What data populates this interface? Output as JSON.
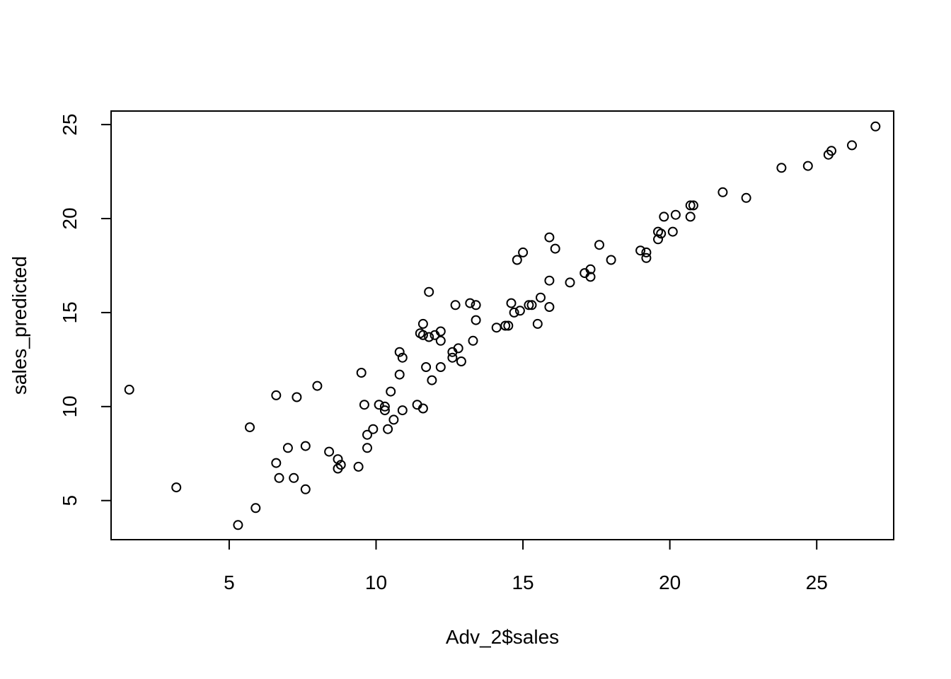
{
  "chart_data": {
    "type": "scatter",
    "title": "",
    "xlabel": "Adv_2$sales",
    "ylabel": "sales_predicted",
    "xlim": [
      0.98,
      27.62
    ],
    "ylim": [
      2.92,
      25.72
    ],
    "xticks": [
      5,
      10,
      15,
      20,
      25
    ],
    "yticks": [
      5,
      10,
      15,
      20,
      25
    ],
    "grid": false,
    "marker": "open-circle",
    "color": "#000000",
    "points": [
      [
        1.6,
        10.9
      ],
      [
        3.2,
        5.7
      ],
      [
        5.3,
        3.7
      ],
      [
        5.7,
        8.9
      ],
      [
        5.9,
        4.6
      ],
      [
        6.6,
        10.6
      ],
      [
        6.6,
        7.0
      ],
      [
        6.7,
        6.2
      ],
      [
        7.0,
        7.8
      ],
      [
        7.2,
        6.2
      ],
      [
        7.3,
        10.5
      ],
      [
        7.6,
        7.9
      ],
      [
        7.6,
        5.6
      ],
      [
        8.0,
        11.1
      ],
      [
        8.4,
        7.6
      ],
      [
        8.7,
        7.2
      ],
      [
        8.7,
        6.7
      ],
      [
        8.8,
        6.9
      ],
      [
        9.4,
        6.8
      ],
      [
        9.5,
        11.8
      ],
      [
        9.6,
        10.1
      ],
      [
        9.7,
        8.5
      ],
      [
        9.7,
        7.8
      ],
      [
        9.9,
        8.8
      ],
      [
        10.1,
        10.1
      ],
      [
        10.3,
        10.0
      ],
      [
        10.3,
        9.8
      ],
      [
        10.4,
        8.8
      ],
      [
        10.5,
        10.8
      ],
      [
        10.6,
        9.3
      ],
      [
        10.8,
        12.9
      ],
      [
        10.8,
        11.7
      ],
      [
        10.9,
        12.6
      ],
      [
        10.9,
        9.8
      ],
      [
        11.4,
        10.1
      ],
      [
        11.5,
        13.9
      ],
      [
        11.6,
        14.4
      ],
      [
        11.6,
        13.8
      ],
      [
        11.6,
        9.9
      ],
      [
        11.7,
        12.1
      ],
      [
        11.8,
        16.1
      ],
      [
        11.8,
        13.7
      ],
      [
        11.9,
        11.4
      ],
      [
        12.0,
        13.8
      ],
      [
        12.2,
        14.0
      ],
      [
        12.2,
        13.5
      ],
      [
        12.2,
        12.1
      ],
      [
        12.6,
        12.9
      ],
      [
        12.6,
        12.6
      ],
      [
        12.7,
        15.4
      ],
      [
        12.8,
        13.1
      ],
      [
        12.9,
        12.4
      ],
      [
        13.2,
        15.5
      ],
      [
        13.3,
        13.5
      ],
      [
        13.4,
        15.4
      ],
      [
        13.4,
        14.6
      ],
      [
        14.1,
        14.2
      ],
      [
        14.4,
        14.3
      ],
      [
        14.5,
        14.3
      ],
      [
        14.6,
        15.5
      ],
      [
        14.7,
        15.0
      ],
      [
        14.8,
        17.8
      ],
      [
        14.9,
        15.1
      ],
      [
        15.0,
        18.2
      ],
      [
        15.2,
        15.4
      ],
      [
        15.3,
        15.4
      ],
      [
        15.5,
        14.4
      ],
      [
        15.6,
        15.8
      ],
      [
        15.9,
        19.0
      ],
      [
        15.9,
        16.7
      ],
      [
        15.9,
        15.3
      ],
      [
        16.1,
        18.4
      ],
      [
        16.6,
        16.6
      ],
      [
        17.1,
        17.1
      ],
      [
        17.3,
        17.3
      ],
      [
        17.3,
        16.9
      ],
      [
        17.6,
        18.6
      ],
      [
        18.0,
        17.8
      ],
      [
        19.0,
        18.3
      ],
      [
        19.2,
        18.2
      ],
      [
        19.2,
        17.9
      ],
      [
        19.6,
        19.3
      ],
      [
        19.6,
        18.9
      ],
      [
        19.7,
        19.2
      ],
      [
        19.8,
        20.1
      ],
      [
        20.1,
        19.3
      ],
      [
        20.2,
        20.2
      ],
      [
        20.7,
        20.7
      ],
      [
        20.7,
        20.1
      ],
      [
        20.8,
        20.7
      ],
      [
        21.8,
        21.4
      ],
      [
        22.6,
        21.1
      ],
      [
        23.8,
        22.7
      ],
      [
        24.7,
        22.8
      ],
      [
        25.4,
        23.4
      ],
      [
        25.5,
        23.6
      ],
      [
        26.2,
        23.9
      ],
      [
        27.0,
        24.9
      ]
    ]
  }
}
